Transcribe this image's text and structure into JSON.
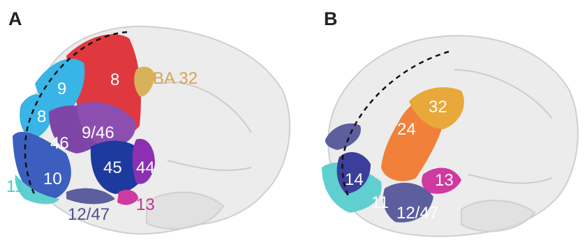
{
  "panels": [
    {
      "letter": "A",
      "labels": {
        "l8a": "8",
        "l9": "9",
        "l8b": "8",
        "l946": "9/46",
        "l46": "46",
        "l10": "10",
        "l45": "45",
        "l44": "44",
        "l11": "11",
        "l1247": "12/47",
        "l13": "13",
        "lba32": "BA 32"
      }
    },
    {
      "letter": "B",
      "labels": {
        "l32": "32",
        "l24": "24",
        "l14": "14",
        "l13": "13",
        "l11": "11",
        "l1247": "12/47"
      }
    }
  ],
  "colors": {
    "brain_outline": "#d9d9d9",
    "area_8": "#e0383f",
    "area_9": "#39b4e6",
    "area_46": "#7d46a6",
    "area_10": "#3c5fbf",
    "area_45": "#1d3a9e",
    "area_44": "#8c2fb3",
    "area_11": "#5fd0cf",
    "area_12_47": "#5c5e9e",
    "area_13": "#cf3aa0",
    "area_ba32": "#d8b25a",
    "area_24": "#f0803a",
    "area_32": "#e8a83a"
  }
}
